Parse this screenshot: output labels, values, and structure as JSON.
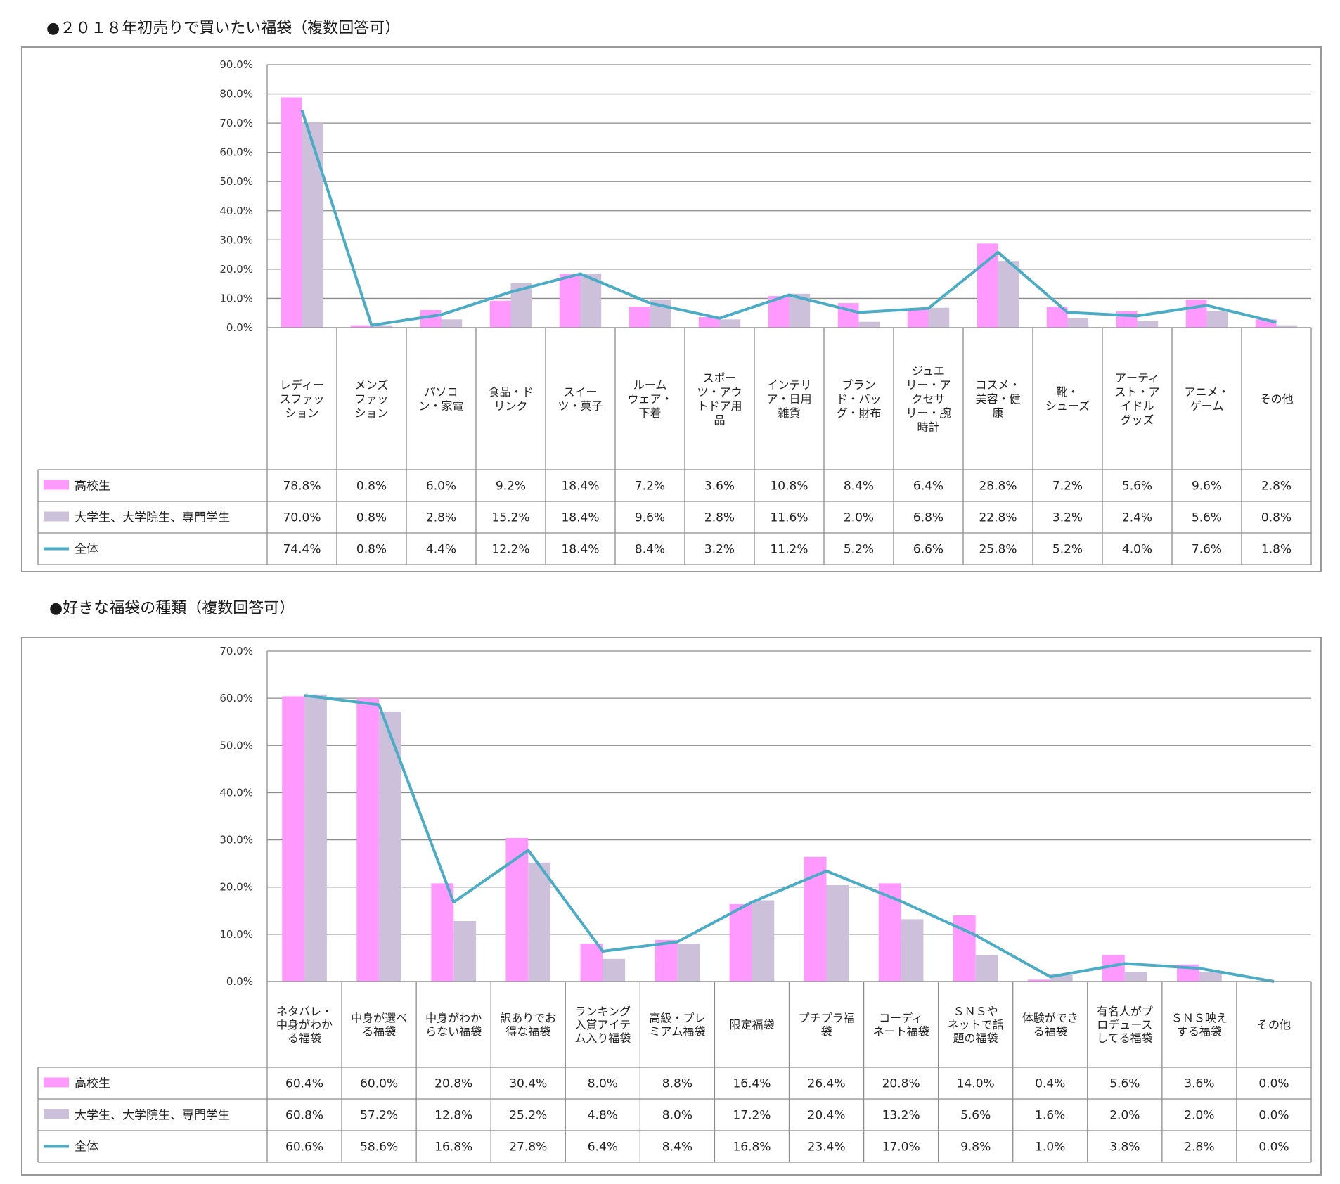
{
  "colors": {
    "hs": "#ff99ff",
    "uni": "#ccc0da",
    "all": "#4bacc6",
    "grid": "#8c8c8c"
  },
  "charts": [
    {
      "title": "●２０１８年初売りで買いたい福袋（複数回答可）",
      "chart_data": {
        "type": "bar",
        "categories": [
          [
            "レディー",
            "スファッ",
            "ション"
          ],
          [
            "メンズ",
            "ファッ",
            "ション"
          ],
          [
            "パソコ",
            "ン・家電"
          ],
          [
            "食品・ド",
            "リンク"
          ],
          [
            "スイー",
            "ツ・菓子"
          ],
          [
            "ルーム",
            "ウェア・",
            "下着"
          ],
          [
            "スポー",
            "ツ・アウ",
            "トドア用",
            "品"
          ],
          [
            "インテリ",
            "ア・日用",
            "雑貨"
          ],
          [
            "ブラン",
            "ド・バッ",
            "グ・財布"
          ],
          [
            "ジュエ",
            "リー・ア",
            "クセサ",
            "リー・腕",
            "時計"
          ],
          [
            "コスメ・",
            "美容・健",
            "康"
          ],
          [
            "靴・",
            "シューズ"
          ],
          [
            "アーティ",
            "スト・ア",
            "イドル",
            "グッズ"
          ],
          [
            "アニメ・",
            "ゲーム"
          ],
          [
            "その他"
          ]
        ],
        "series": [
          {
            "name": "高校生",
            "type": "bar",
            "values": [
              78.8,
              0.8,
              6.0,
              9.2,
              18.4,
              7.2,
              3.6,
              10.8,
              8.4,
              6.4,
              28.8,
              7.2,
              5.6,
              9.6,
              2.8
            ],
            "labels": [
              "78.8%",
              "0.8%",
              "6.0%",
              "9.2%",
              "18.4%",
              "7.2%",
              "3.6%",
              "10.8%",
              "8.4%",
              "6.4%",
              "28.8%",
              "7.2%",
              "5.6%",
              "9.6%",
              "2.8%"
            ]
          },
          {
            "name": "大学生、大学院生、専門学生",
            "type": "bar",
            "values": [
              70.0,
              0.8,
              2.8,
              15.2,
              18.4,
              9.6,
              2.8,
              11.6,
              2.0,
              6.8,
              22.8,
              3.2,
              2.4,
              5.6,
              0.8
            ],
            "labels": [
              "70.0%",
              "0.8%",
              "2.8%",
              "15.2%",
              "18.4%",
              "9.6%",
              "2.8%",
              "11.6%",
              "2.0%",
              "6.8%",
              "22.8%",
              "3.2%",
              "2.4%",
              "5.6%",
              "0.8%"
            ]
          },
          {
            "name": "全体",
            "type": "line",
            "values": [
              74.4,
              0.8,
              4.4,
              12.2,
              18.4,
              8.4,
              3.2,
              11.2,
              5.2,
              6.6,
              25.8,
              5.2,
              4.0,
              7.6,
              1.8
            ],
            "labels": [
              "74.4%",
              "0.8%",
              "4.4%",
              "12.2%",
              "18.4%",
              "8.4%",
              "3.2%",
              "11.2%",
              "5.2%",
              "6.6%",
              "25.8%",
              "5.2%",
              "4.0%",
              "7.6%",
              "1.8%"
            ]
          }
        ],
        "ylim": [
          0,
          90
        ],
        "yticks": [
          "0.0%",
          "10.0%",
          "20.0%",
          "30.0%",
          "40.0%",
          "50.0%",
          "60.0%",
          "70.0%",
          "80.0%",
          "90.0%"
        ],
        "grid": true,
        "legend": "data-table-left"
      }
    },
    {
      "title": "●好きな福袋の種類（複数回答可）",
      "chart_data": {
        "type": "bar",
        "categories": [
          [
            "ネタバレ・",
            "中身がわか",
            "る福袋"
          ],
          [
            "中身が選べ",
            "る福袋"
          ],
          [
            "中身がわか",
            "らない福袋"
          ],
          [
            "訳ありでお",
            "得な福袋"
          ],
          [
            "ランキング",
            "入賞アイテ",
            "ム入り福袋"
          ],
          [
            "高級・プレ",
            "ミアム福袋"
          ],
          [
            "限定福袋"
          ],
          [
            "プチプラ福",
            "袋"
          ],
          [
            "コーディ",
            "ネート福袋"
          ],
          [
            "ＳＮＳや",
            "ネットで話",
            "題の福袋"
          ],
          [
            "体験ができ",
            "る福袋"
          ],
          [
            "有名人がプ",
            "ロデュース",
            "してる福袋"
          ],
          [
            "ＳＮＳ映え",
            "する福袋"
          ],
          [
            "その他"
          ]
        ],
        "series": [
          {
            "name": "高校生",
            "type": "bar",
            "values": [
              60.4,
              60.0,
              20.8,
              30.4,
              8.0,
              8.8,
              16.4,
              26.4,
              20.8,
              14.0,
              0.4,
              5.6,
              3.6,
              0.0
            ],
            "labels": [
              "60.4%",
              "60.0%",
              "20.8%",
              "30.4%",
              "8.0%",
              "8.8%",
              "16.4%",
              "26.4%",
              "20.8%",
              "14.0%",
              "0.4%",
              "5.6%",
              "3.6%",
              "0.0%"
            ]
          },
          {
            "name": "大学生、大学院生、専門学生",
            "type": "bar",
            "values": [
              60.8,
              57.2,
              12.8,
              25.2,
              4.8,
              8.0,
              17.2,
              20.4,
              13.2,
              5.6,
              1.6,
              2.0,
              2.0,
              0.0
            ],
            "labels": [
              "60.8%",
              "57.2%",
              "12.8%",
              "25.2%",
              "4.8%",
              "8.0%",
              "17.2%",
              "20.4%",
              "13.2%",
              "5.6%",
              "1.6%",
              "2.0%",
              "2.0%",
              "0.0%"
            ]
          },
          {
            "name": "全体",
            "type": "line",
            "values": [
              60.6,
              58.6,
              16.8,
              27.8,
              6.4,
              8.4,
              16.8,
              23.4,
              17.0,
              9.8,
              1.0,
              3.8,
              2.8,
              0.0
            ],
            "labels": [
              "60.6%",
              "58.6%",
              "16.8%",
              "27.8%",
              "6.4%",
              "8.4%",
              "16.8%",
              "23.4%",
              "17.0%",
              "9.8%",
              "1.0%",
              "3.8%",
              "2.8%",
              "0.0%"
            ]
          }
        ],
        "ylim": [
          0,
          70
        ],
        "yticks": [
          "0.0%",
          "10.0%",
          "20.0%",
          "30.0%",
          "40.0%",
          "50.0%",
          "60.0%",
          "70.0%"
        ],
        "grid": true,
        "legend": "data-table-left"
      }
    }
  ]
}
